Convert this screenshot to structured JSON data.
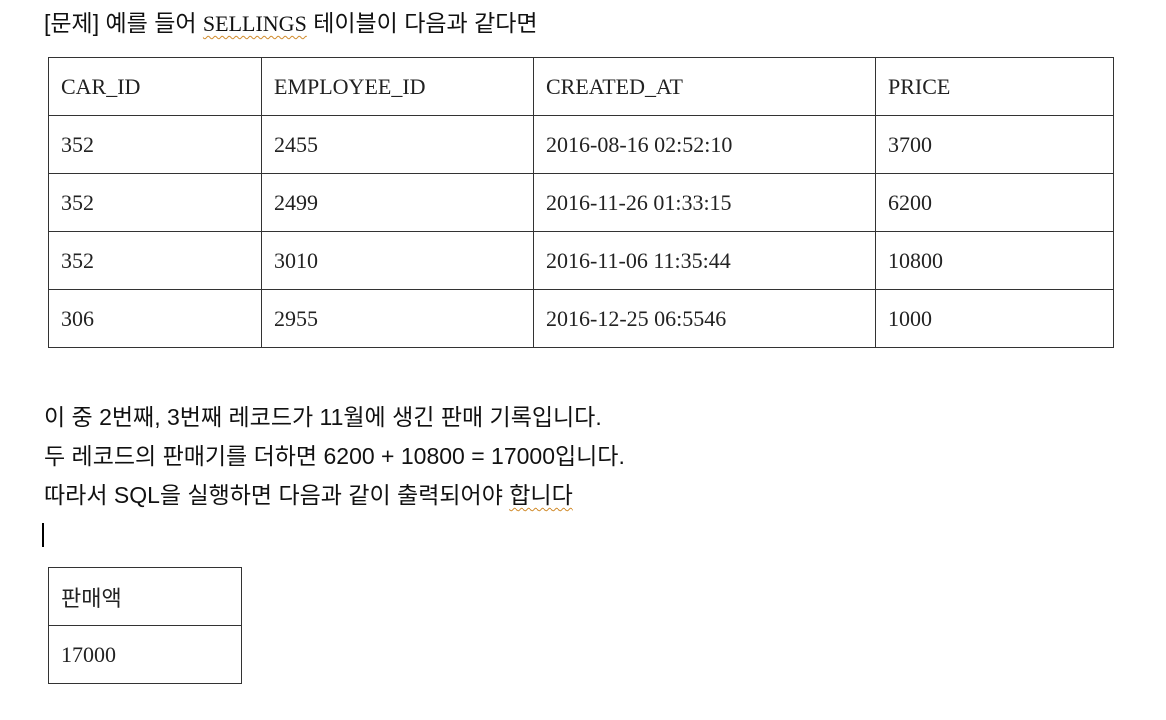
{
  "heading": {
    "prefix": "[문제] 예를 들어 ",
    "table_name": "SELLINGS",
    "suffix": " 테이블이 다음과 같다면"
  },
  "sellings_table": {
    "columns": [
      "CAR_ID",
      "EMPLOYEE_ID",
      "CREATED_AT",
      "PRICE"
    ],
    "rows": [
      [
        "352",
        "2455",
        "2016-08-16 02:52:10",
        "3700"
      ],
      [
        "352",
        "2499",
        "2016-11-26 01:33:15",
        "6200"
      ],
      [
        "352",
        "3010",
        "2016-11-06 11:35:44",
        "10800"
      ],
      [
        "306",
        "2955",
        "2016-12-25 06:5546",
        "1000"
      ]
    ]
  },
  "explanation": {
    "line1": "이 중 2번째, 3번째 레코드가 11월에 생긴 판매 기록입니다.",
    "line2": "두 레코드의 판매기를 더하면 6200 + 10800 = 17000입니다.",
    "line3_main": "따라서 SQL을 실행하면 다음과 같이 출력되어야 ",
    "line3_squiggle": "합니다"
  },
  "result_table": {
    "column": "판매액",
    "value": "17000"
  }
}
